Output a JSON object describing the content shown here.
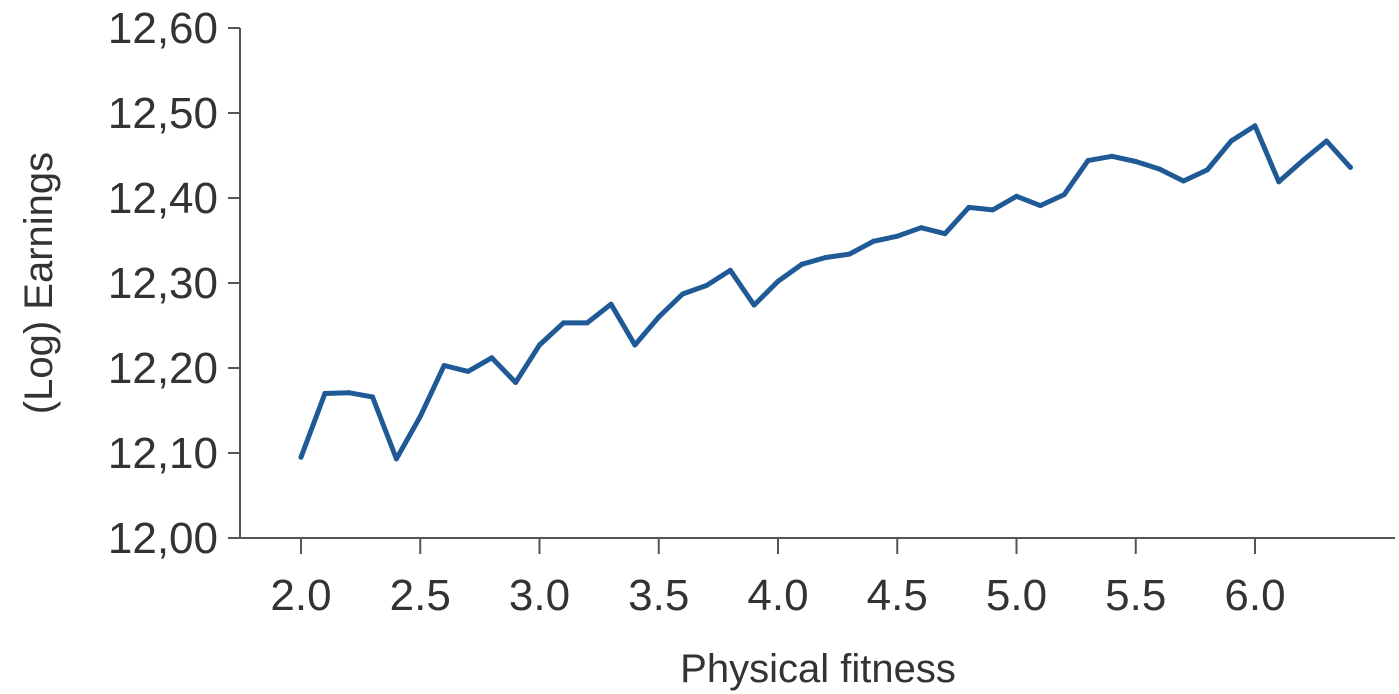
{
  "chart_data": {
    "type": "line",
    "title": "",
    "xlabel": "Physical fitness",
    "ylabel": "(Log) Earnings",
    "xlim": [
      1.75,
      6.6
    ],
    "ylim": [
      12.0,
      12.6
    ],
    "x_ticks": [
      2.0,
      2.5,
      3.0,
      3.5,
      4.0,
      4.5,
      5.0,
      5.5,
      6.0
    ],
    "x_tick_labels": [
      "2.0",
      "2.5",
      "3.0",
      "3.5",
      "4.0",
      "4.5",
      "5.0",
      "5.5",
      "6.0"
    ],
    "y_ticks": [
      12.0,
      12.1,
      12.2,
      12.3,
      12.4,
      12.5,
      12.6
    ],
    "y_tick_labels": [
      "12,00",
      "12,10",
      "12,20",
      "12,30",
      "12,40",
      "12,50",
      "12,60"
    ],
    "grid": false,
    "line_color": "#1f5a96",
    "series": [
      {
        "x": [
          2.0,
          2.1,
          2.2,
          2.3,
          2.4,
          2.5,
          2.6,
          2.7,
          2.8,
          2.9,
          3.0,
          3.1,
          3.2,
          3.3,
          3.4,
          3.5,
          3.6,
          3.7,
          3.8,
          3.9,
          4.0,
          4.1,
          4.2,
          4.3,
          4.4,
          4.5,
          4.6,
          4.7,
          4.8,
          4.9,
          5.0,
          5.1,
          5.2,
          5.3,
          5.4,
          5.5,
          5.6,
          5.7,
          5.8,
          5.9,
          6.0,
          6.1,
          6.2,
          6.3,
          6.4
        ],
        "values": [
          12.095,
          12.17,
          12.171,
          12.166,
          12.093,
          12.143,
          12.203,
          12.196,
          12.212,
          12.183,
          12.227,
          12.253,
          12.253,
          12.275,
          12.227,
          12.26,
          12.287,
          12.297,
          12.315,
          12.274,
          12.302,
          12.322,
          12.33,
          12.334,
          12.349,
          12.355,
          12.365,
          12.358,
          12.389,
          12.386,
          12.402,
          12.391,
          12.404,
          12.444,
          12.449,
          12.443,
          12.434,
          12.42,
          12.433,
          12.467,
          12.485,
          12.419,
          12.444,
          12.467,
          12.436
        ]
      }
    ]
  }
}
